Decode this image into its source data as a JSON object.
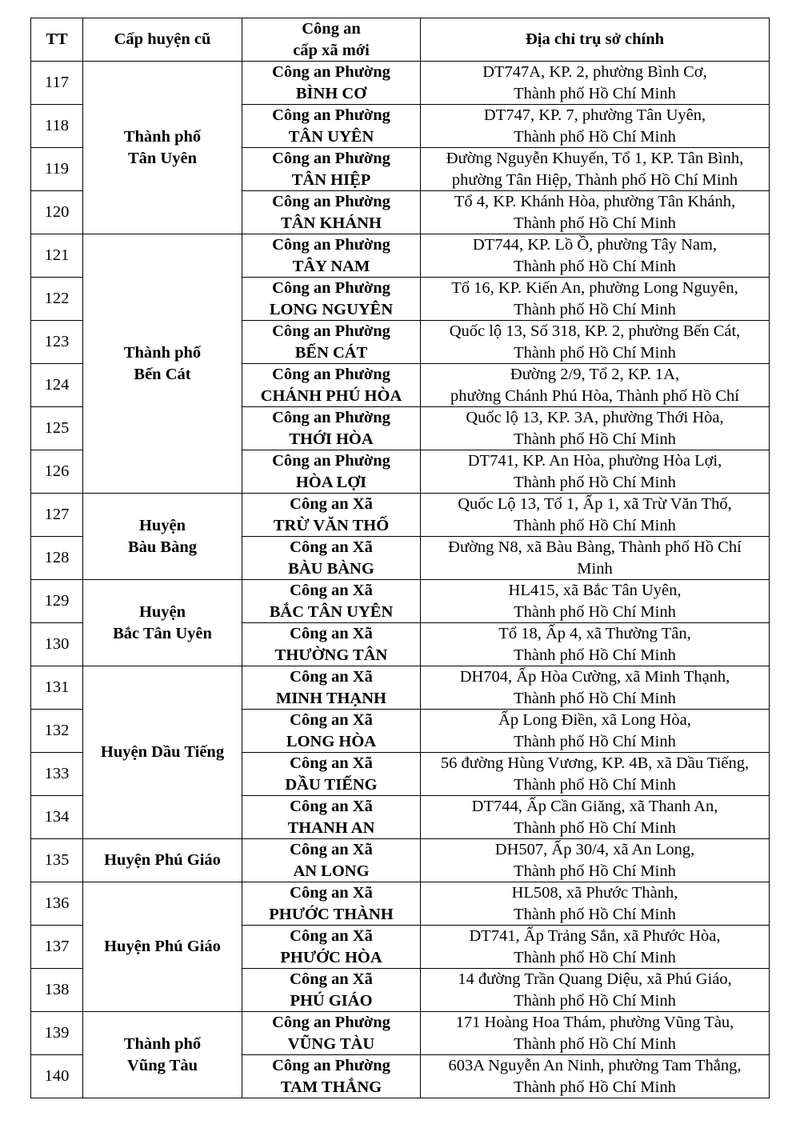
{
  "headers": [
    "TT",
    "Cấp huyện cũ",
    "Công an\ncấp xã mới",
    "Địa chỉ trụ sở chính"
  ],
  "groups": [
    {
      "district": "Thành phố\nTân Uyên",
      "rows": [
        {
          "tt": "117",
          "unit": "Công an Phường\nBÌNH CƠ",
          "address": "DT747A, KP. 2, phường Bình Cơ,\nThành phố Hồ Chí Minh"
        },
        {
          "tt": "118",
          "unit": "Công an Phường\nTÂN UYÊN",
          "address": "DT747, KP. 7, phường Tân Uyên,\nThành phố Hồ Chí Minh"
        },
        {
          "tt": "119",
          "unit": "Công an Phường\nTÂN HIỆP",
          "address": "Đường Nguyễn Khuyến, Tổ 1, KP. Tân Bình,\nphường Tân Hiệp, Thành phố Hồ Chí Minh"
        },
        {
          "tt": "120",
          "unit": "Công an Phường\nTÂN KHÁNH",
          "address": "Tổ 4, KP. Khánh Hòa, phường Tân  Khánh,\nThành phố Hồ Chí Minh"
        }
      ]
    },
    {
      "district": "Thành phố\nBến Cát",
      "rows": [
        {
          "tt": "121",
          "unit": "Công an Phường\nTÂY NAM",
          "address": "DT744, KP. Lồ Ồ, phường Tây Nam,\nThành phố Hồ Chí Minh"
        },
        {
          "tt": "122",
          "unit": "Công an Phường\nLONG NGUYÊN",
          "address": "Tổ 16, KP. Kiến An, phường Long Nguyên,\nThành phố Hồ Chí Minh"
        },
        {
          "tt": "123",
          "unit": "Công an Phường\nBẾN CÁT",
          "address": "Quốc lộ 13, Số 318, KP. 2, phường Bến Cát,\nThành phố Hồ Chí Minh"
        },
        {
          "tt": "124",
          "unit": "Công an Phường\nCHÁNH PHÚ HÒA",
          "address": "Đường 2/9, Tổ 2, KP. 1A,\nphường Chánh Phú Hòa, Thành phố Hồ Chí"
        },
        {
          "tt": "125",
          "unit": "Công an Phường\nTHỚI HÒA",
          "address": "Quốc lộ 13, KP. 3A, phường Thới Hòa,\nThành phố Hồ Chí Minh"
        },
        {
          "tt": "126",
          "unit": "Công an Phường\nHÒA LỢI",
          "address": "DT741, KP. An Hòa, phường Hòa Lợi,\nThành phố Hồ Chí Minh"
        }
      ]
    },
    {
      "district": "Huyện\nBàu Bàng",
      "rows": [
        {
          "tt": "127",
          "unit": "Công an Xã\nTRỪ VĂN THỐ",
          "address": "Quốc Lộ 13, Tổ 1, Ấp 1, xã Trừ Văn Thố,\nThành phố Hồ Chí Minh"
        },
        {
          "tt": "128",
          "unit": "Công an Xã\nBÀU BÀNG",
          "address": "Đường N8, xã Bàu Bàng, Thành phố Hồ Chí\nMinh"
        }
      ]
    },
    {
      "district": "Huyện\nBắc Tân Uyên",
      "rows": [
        {
          "tt": "129",
          "unit": "Công an Xã\nBẮC TÂN UYÊN",
          "address": "HL415, xã Bắc Tân Uyên,\nThành phố Hồ Chí Minh"
        },
        {
          "tt": "130",
          "unit": "Công an Xã\nTHƯỜNG TÂN",
          "address": "Tổ 18, Ấp 4, xã Thường Tân,\nThành phố Hồ Chí Minh"
        }
      ]
    },
    {
      "district": "Huyện Dầu Tiếng",
      "rows": [
        {
          "tt": "131",
          "unit": "Công an Xã\nMINH THẠNH",
          "address": "DH704, Ấp Hòa Cường, xã Minh Thạnh,\nThành phố Hồ Chí Minh"
        },
        {
          "tt": "132",
          "unit": "Công an Xã\nLONG HÒA",
          "address": "Ấp Long Điền, xã Long Hòa,\nThành phố Hồ Chí Minh"
        },
        {
          "tt": "133",
          "unit": "Công an Xã\nDẦU TIẾNG",
          "address": "56 đường Hùng Vương, KP. 4B, xã Dầu Tiếng,\nThành phố Hồ Chí Minh"
        },
        {
          "tt": "134",
          "unit": "Công an Xã\nTHANH AN",
          "address": "DT744, Ấp Cần Giăng, xã Thanh An,\nThành phố Hồ Chí Minh"
        }
      ]
    },
    {
      "district": "Huyện Phú Giáo",
      "rows": [
        {
          "tt": "135",
          "unit": "Công an Xã\nAN LONG",
          "address": "DH507, Ấp 30/4, xã An Long,\nThành phố Hồ Chí Minh"
        }
      ]
    },
    {
      "district": "Huyện Phú Giáo",
      "rows": [
        {
          "tt": "136",
          "unit": "Công an Xã\nPHƯỚC THÀNH",
          "address": "HL508, xã Phước Thành,\nThành phố Hồ Chí Minh"
        },
        {
          "tt": "137",
          "unit": "Công an Xã\nPHƯỚC HÒA",
          "address": "DT741, Ấp Trảng Sắn, xã Phước Hòa,\nThành phố Hồ Chí Minh"
        },
        {
          "tt": "138",
          "unit": "Công an Xã\nPHÚ GIÁO",
          "address": "14 đường Trần Quang Diệu, xã Phú Giáo,\nThành phố Hồ Chí Minh"
        }
      ]
    },
    {
      "district": "Thành phố\nVũng Tàu",
      "rows": [
        {
          "tt": "139",
          "unit": "Công an Phường\nVŨNG TÀU",
          "address": "171 Hoàng Hoa Thám, phường Vũng Tàu,\nThành phố Hồ Chí Minh"
        },
        {
          "tt": "140",
          "unit": "Công an Phường\nTAM THẮNG",
          "address": "603A Nguyễn An Ninh, phường Tam Thắng,\nThành phố Hồ Chí Minh"
        }
      ]
    }
  ]
}
